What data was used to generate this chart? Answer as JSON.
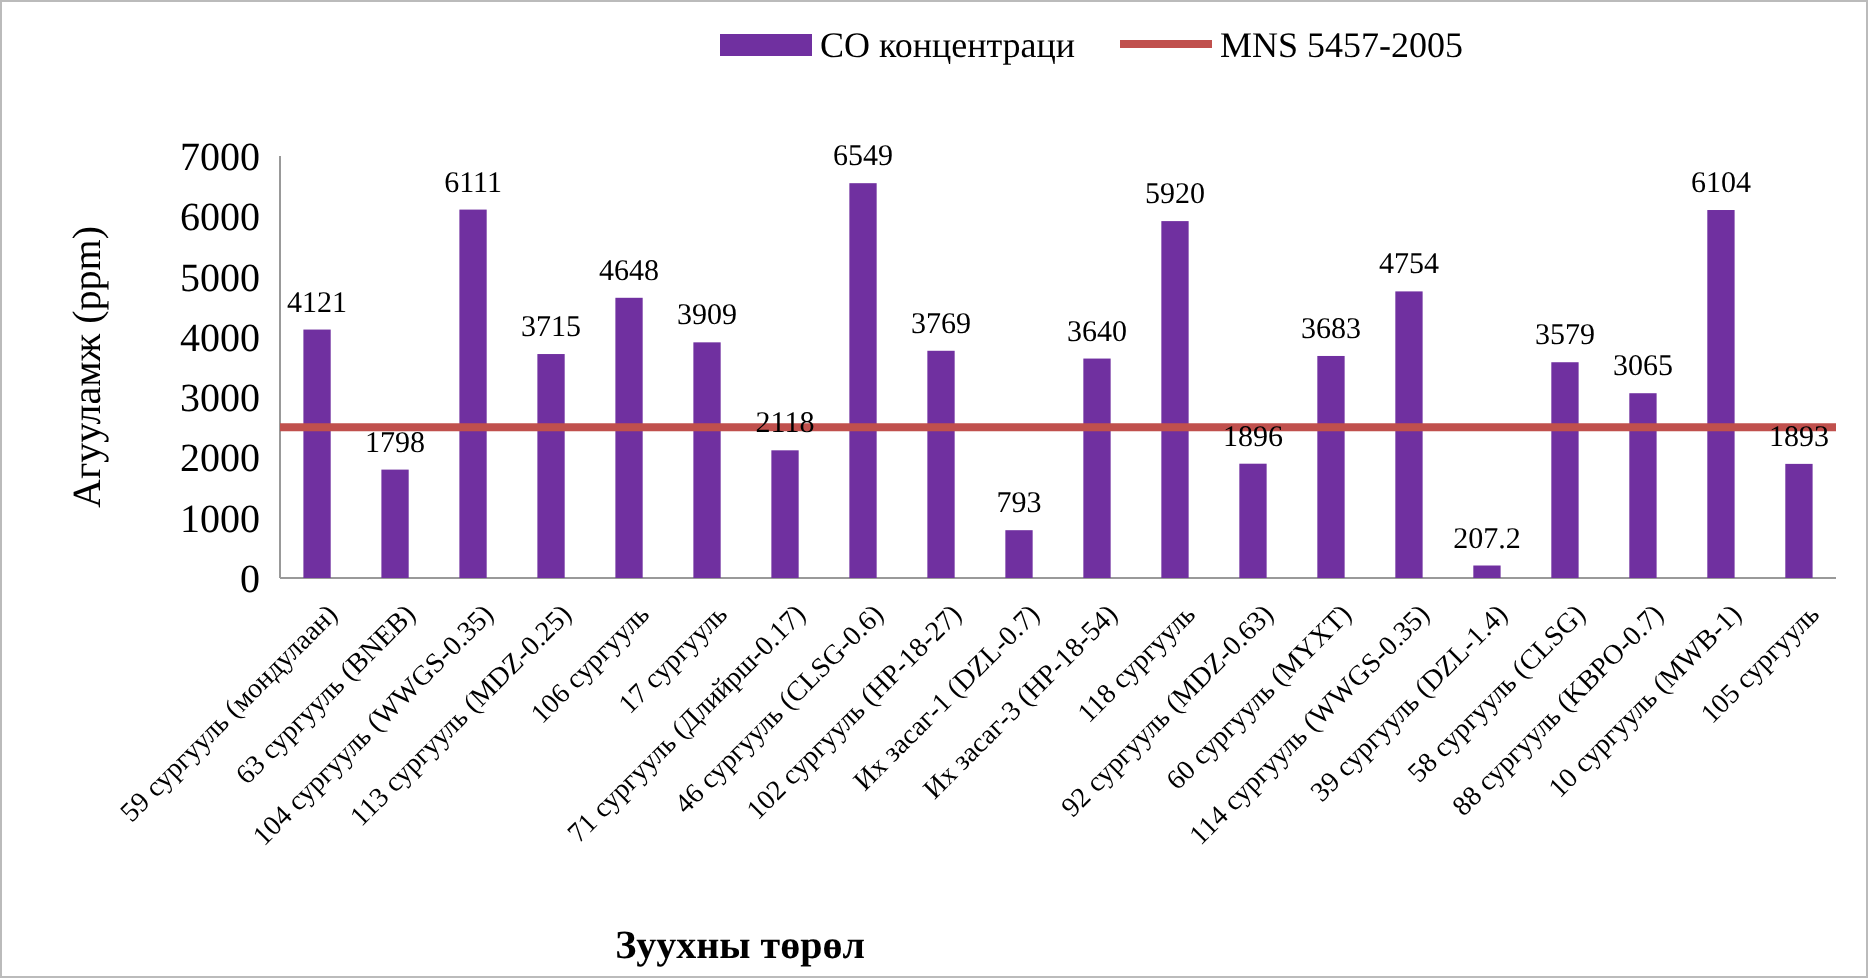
{
  "chart_data": {
    "type": "bar",
    "xlabel": "Зуухны төрөл",
    "ylabel": "Агууламж (ppm)",
    "categories": [
      "59 сургууль (мондулаан)",
      "63 сургууль (BNEB)",
      "104 сургууль (WWGS-0.35)",
      "113 сургууль (MDZ-0.25)",
      "106 сургууль",
      "17 сургууль",
      "71 сургууль (Длийрш-0.17)",
      "46 сургууль (CLSG-0.6)",
      "102 сургууль (HP-18-27)",
      "Их засаг-1 (DZL-0.7)",
      "Их засаг-3 (HP-18-54)",
      "118 сургууль",
      "92 сургууль (MDZ-0.63)",
      "60 сургууль (MYXT)",
      "114 сургууль (WWGS-0.35)",
      "39 сургууль (DZL-1.4)",
      "58 сургууль (CLSG)",
      "88 сургууль (KBPO-0.7)",
      "10 сургууль (MWB-1)",
      "105 сургууль"
    ],
    "series": [
      {
        "name": "CO концентраци",
        "color": "#7030a0",
        "values": [
          4121,
          1798,
          6111,
          3715,
          4648,
          3909,
          2118,
          6549,
          3769,
          793,
          3640,
          5920,
          1896,
          3683,
          4754,
          207.2,
          3579,
          3065,
          6104,
          1893
        ]
      }
    ],
    "ylim": [
      0,
      7000
    ],
    "yticks": [
      0,
      1000,
      2000,
      3000,
      4000,
      5000,
      6000,
      7000
    ],
    "ref_lines": [
      {
        "axis": "y",
        "value": 2500,
        "label": "MNS 5457-2005",
        "color": "#c0504d"
      }
    ],
    "data_labels": true,
    "legend": "top right"
  }
}
